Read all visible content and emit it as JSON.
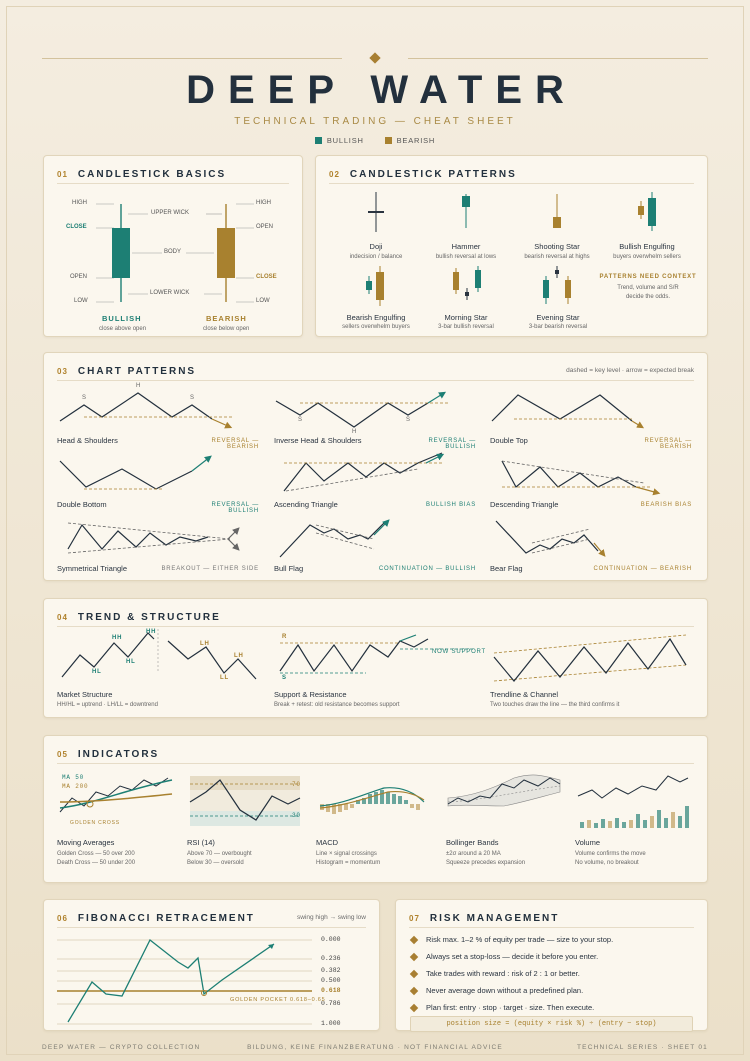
{
  "header": {
    "title": "DEEP WATER",
    "subtitle": "TECHNICAL TRADING — CHEAT SHEET",
    "legend_bull": "BULLISH",
    "legend_bear": "BEARISH"
  },
  "colors": {
    "bullish": "#1d7f74",
    "bearish": "#a8812f",
    "ink": "#23303d",
    "paper": "#fbf7ee"
  },
  "s1": {
    "num": "01",
    "title": "CANDLESTICK BASICS",
    "high": "HIGH",
    "close": "CLOSE",
    "open": "OPEN",
    "low": "LOW",
    "upper_wick": "UPPER WICK",
    "body": "BODY",
    "lower_wick": "LOWER WICK",
    "bull": "BULLISH",
    "bull_sub": "close above open",
    "bear": "BEARISH",
    "bear_sub": "close below open"
  },
  "s2": {
    "num": "02",
    "title": "CANDLESTICK PATTERNS",
    "patterns": [
      {
        "name": "Doji",
        "desc": "indecision / balance"
      },
      {
        "name": "Hammer",
        "desc": "bullish reversal at lows"
      },
      {
        "name": "Shooting Star",
        "desc": "bearish reversal at highs"
      },
      {
        "name": "Bullish Engulfing",
        "desc": "buyers overwhelm sellers"
      },
      {
        "name": "Bearish Engulfing",
        "desc": "sellers overwhelm buyers"
      },
      {
        "name": "Morning Star",
        "desc": "3-bar bullish reversal"
      },
      {
        "name": "Evening Star",
        "desc": "3-bar bearish reversal"
      }
    ],
    "context_title": "PATTERNS NEED CONTEXT",
    "context_l1": "Trend, volume and S/R",
    "context_l2": "decide the odds."
  },
  "s3": {
    "num": "03",
    "title": "CHART PATTERNS",
    "note": "dashed = key level · arrow = expected break",
    "items": [
      {
        "name": "Head & Shoulders",
        "tag": "REVERSAL — BEARISH"
      },
      {
        "name": "Inverse Head & Shoulders",
        "tag": "REVERSAL — BULLISH"
      },
      {
        "name": "Double Top",
        "tag": "REVERSAL — BEARISH"
      },
      {
        "name": "Double Bottom",
        "tag": "REVERSAL — BULLISH"
      },
      {
        "name": "Ascending Triangle",
        "tag": "BULLISH BIAS"
      },
      {
        "name": "Descending Triangle",
        "tag": "BEARISH BIAS"
      },
      {
        "name": "Symmetrical Triangle",
        "tag": "BREAKOUT — EITHER SIDE"
      },
      {
        "name": "Bull Flag",
        "tag": "CONTINUATION — BULLISH"
      },
      {
        "name": "Bear Flag",
        "tag": "CONTINUATION — BEARISH"
      }
    ],
    "mark_s": "S",
    "mark_h": "H"
  },
  "s4": {
    "num": "04",
    "title": "TREND & STRUCTURE",
    "hh": "HH",
    "hl": "HL",
    "lh": "LH",
    "ll": "LL",
    "r": "R",
    "s": "S",
    "now_support": "NOW SUPPORT",
    "items": [
      {
        "name": "Market Structure",
        "desc": "HH/HL = uptrend · LH/LL = downtrend"
      },
      {
        "name": "Support & Resistance",
        "desc": "Break + retest: old resistance becomes support"
      },
      {
        "name": "Trendline & Channel",
        "desc": "Two touches draw the line — the third confirms it"
      }
    ]
  },
  "s5": {
    "num": "05",
    "title": "INDICATORS",
    "ma50": "MA 50",
    "ma200": "MA 200",
    "golden_cross": "GOLDEN CROSS",
    "rsi70": "70",
    "rsi30": "30",
    "items": [
      {
        "name": "Moving Averages",
        "l1": "Golden Cross — 50 over 200",
        "l2": "Death Cross — 50 under 200"
      },
      {
        "name": "RSI (14)",
        "l1": "Above 70 — overbought",
        "l2": "Below 30 — oversold"
      },
      {
        "name": "MACD",
        "l1": "Line × signal crossings",
        "l2": "Histogram = momentum"
      },
      {
        "name": "Bollinger Bands",
        "l1": "±2σ around a 20 MA",
        "l2": "Squeeze precedes expansion"
      },
      {
        "name": "Volume",
        "l1": "Volume confirms the move",
        "l2": "No volume, no breakout"
      }
    ]
  },
  "s6": {
    "num": "06",
    "title": "FIBONACCI RETRACEMENT",
    "note": "swing high → swing low",
    "levels": [
      "0.000",
      "0.236",
      "0.382",
      "0.500",
      "0.618",
      "0.786",
      "1.000"
    ],
    "golden": "GOLDEN POCKET 0.618–0.65"
  },
  "s7": {
    "num": "07",
    "title": "RISK MANAGEMENT",
    "rules": [
      "Risk max. 1–2 % of equity per trade — size to your stop.",
      "Always set a stop-loss — decide it before you enter.",
      "Take trades with reward : risk of 2 : 1 or better.",
      "Never average down without a predefined plan.",
      "Plan first: entry · stop · target · size. Then execute."
    ],
    "formula": "position size = (equity × risk %) ÷ (entry − stop)"
  },
  "footer": {
    "left": "DEEP WATER — CRYPTO COLLECTION",
    "center": "BILDUNG, KEINE FINANZBERATUNG · NOT FINANCIAL ADVICE",
    "right": "TECHNICAL SERIES · SHEET 01"
  }
}
